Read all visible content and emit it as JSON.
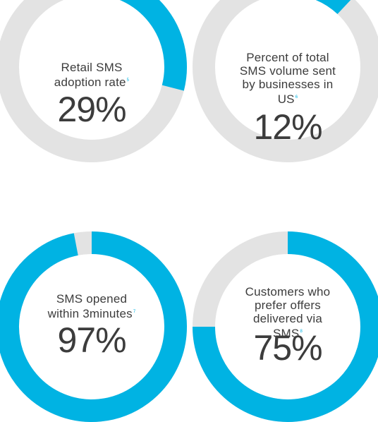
{
  "colors": {
    "accent": "#00b3e3",
    "track": "#e3e3e3",
    "text": "#3c3c3c"
  },
  "chart_data": [
    {
      "type": "pie",
      "variant": "donut",
      "label": "Retail SMS adoption rate",
      "footnote": "5",
      "value_label": "29%",
      "value": 29,
      "total": 100
    },
    {
      "type": "pie",
      "variant": "donut",
      "label": "Percent of total SMS volume sent by businesses in US",
      "footnote": "6",
      "value_label": "12%",
      "value": 12,
      "total": 100
    },
    {
      "type": "pie",
      "variant": "donut",
      "label": "SMS opened within 3minutes",
      "footnote": "7",
      "value_label": "97%",
      "value": 97,
      "total": 100
    },
    {
      "type": "pie",
      "variant": "donut",
      "label": "Customers who prefer offers delivered via SMS",
      "footnote": "8",
      "value_label": "75%",
      "value": 75,
      "total": 100
    }
  ]
}
